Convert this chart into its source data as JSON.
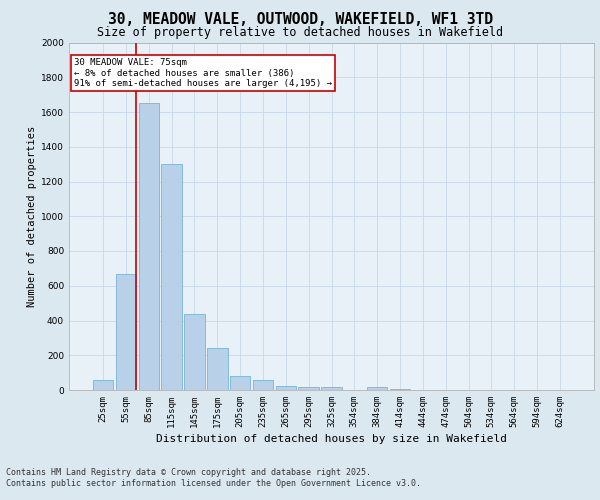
{
  "title": "30, MEADOW VALE, OUTWOOD, WAKEFIELD, WF1 3TD",
  "subtitle": "Size of property relative to detached houses in Wakefield",
  "xlabel": "Distribution of detached houses by size in Wakefield",
  "ylabel": "Number of detached properties",
  "categories": [
    "25sqm",
    "55sqm",
    "85sqm",
    "115sqm",
    "145sqm",
    "175sqm",
    "205sqm",
    "235sqm",
    "265sqm",
    "295sqm",
    "325sqm",
    "354sqm",
    "384sqm",
    "414sqm",
    "444sqm",
    "474sqm",
    "504sqm",
    "534sqm",
    "564sqm",
    "594sqm",
    "624sqm"
  ],
  "values": [
    60,
    670,
    1650,
    1300,
    440,
    240,
    80,
    55,
    25,
    20,
    15,
    0,
    18,
    5,
    0,
    0,
    0,
    0,
    0,
    0,
    0
  ],
  "bar_color": "#b8d0e8",
  "bar_edge_color": "#6aaad4",
  "grid_color": "#c8d8e8",
  "background_color": "#dce8f0",
  "plot_bg_color": "#e8f0f8",
  "vline_color": "#cc0000",
  "annotation_text": "30 MEADOW VALE: 75sqm\n← 8% of detached houses are smaller (386)\n91% of semi-detached houses are larger (4,195) →",
  "annotation_box_facecolor": "#ffffff",
  "annotation_box_edgecolor": "#cc0000",
  "ylim": [
    0,
    2000
  ],
  "yticks": [
    0,
    200,
    400,
    600,
    800,
    1000,
    1200,
    1400,
    1600,
    1800,
    2000
  ],
  "footer": "Contains HM Land Registry data © Crown copyright and database right 2025.\nContains public sector information licensed under the Open Government Licence v3.0.",
  "title_fontsize": 10.5,
  "subtitle_fontsize": 8.5,
  "axis_label_fontsize": 7.5,
  "tick_fontsize": 6.5,
  "annotation_fontsize": 6.5,
  "footer_fontsize": 6.0
}
